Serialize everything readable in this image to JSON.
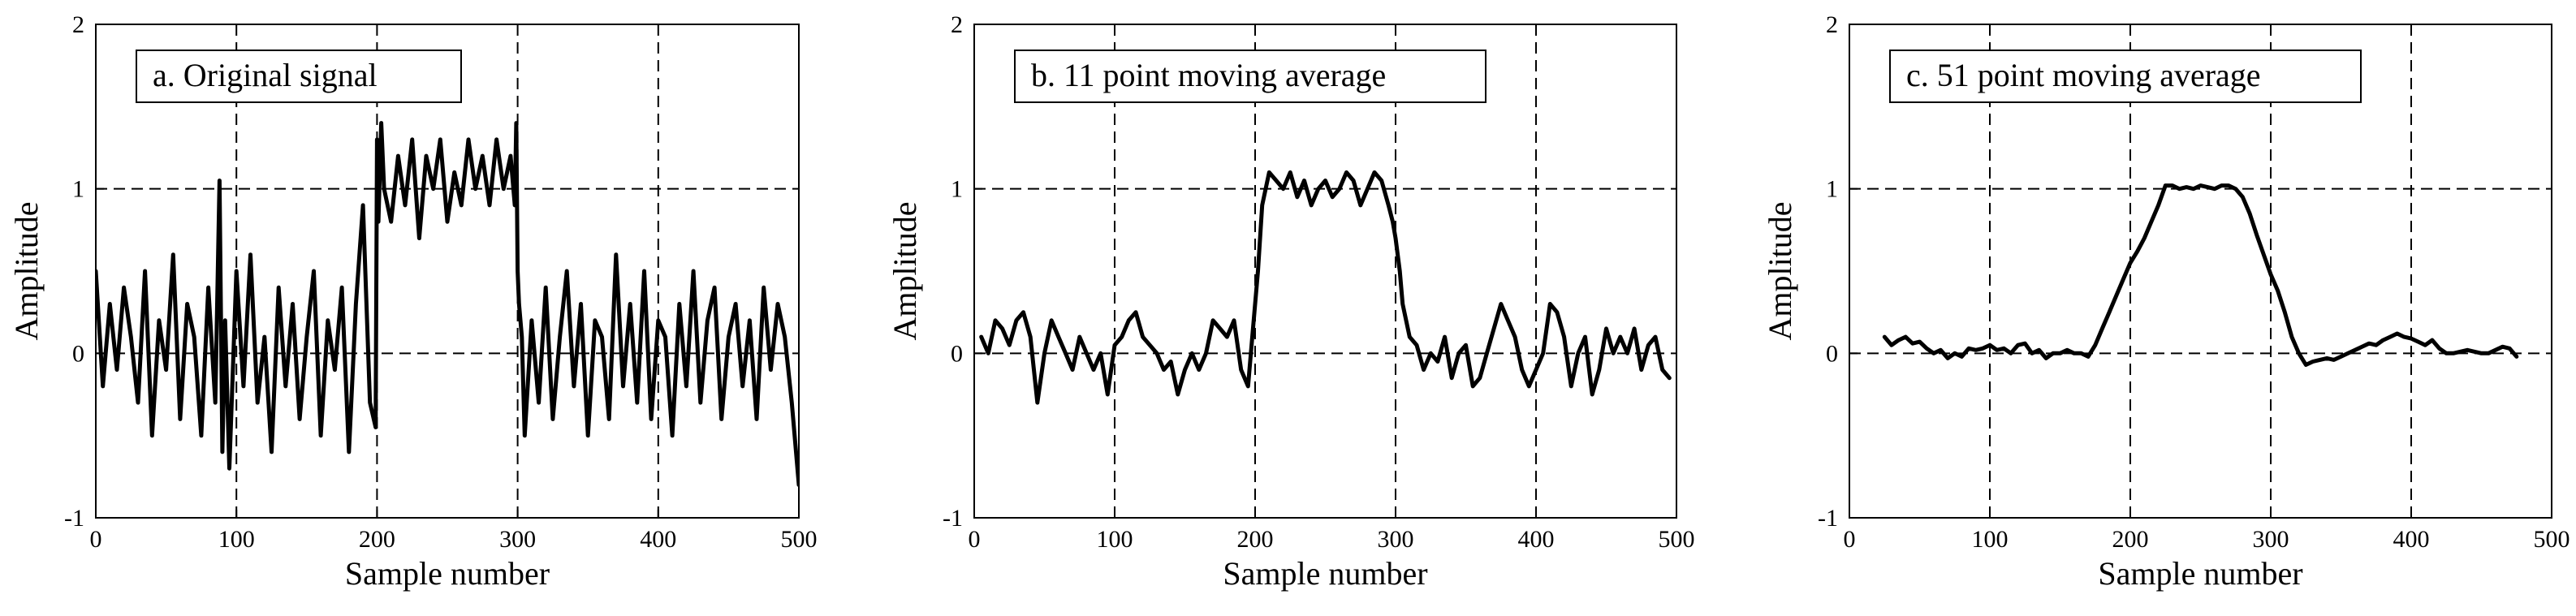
{
  "chart_data": [
    {
      "type": "line",
      "legend": "a.  Original signal",
      "xlabel": "Sample number",
      "ylabel": "Amplitude",
      "xlim": [
        0,
        500
      ],
      "ylim": [
        -1,
        2
      ],
      "x_ticks": [
        "0",
        "100",
        "200",
        "300",
        "400",
        "500"
      ],
      "y_ticks": [
        "-1",
        "0",
        "1",
        "2"
      ],
      "grid": true,
      "legend_position": "top-left",
      "series": [
        {
          "x": [
            0,
            5,
            10,
            15,
            20,
            25,
            30,
            35,
            40,
            45,
            50,
            55,
            60,
            65,
            70,
            75,
            80,
            85,
            88,
            90,
            92,
            95,
            100,
            105,
            110,
            115,
            120,
            125,
            130,
            135,
            140,
            145,
            150,
            155,
            160,
            165,
            170,
            175,
            180,
            185,
            190,
            195,
            199,
            200,
            201,
            203,
            205,
            210,
            215,
            220,
            225,
            230,
            235,
            240,
            245,
            250,
            255,
            260,
            265,
            270,
            275,
            280,
            285,
            290,
            295,
            298,
            299,
            300,
            301,
            303,
            305,
            310,
            315,
            320,
            325,
            330,
            335,
            340,
            345,
            350,
            355,
            360,
            365,
            370,
            375,
            380,
            385,
            390,
            395,
            400,
            405,
            410,
            415,
            420,
            425,
            430,
            435,
            440,
            445,
            450,
            455,
            460,
            465,
            470,
            475,
            480,
            485,
            490,
            495,
            500
          ],
          "y": [
            0.5,
            -0.2,
            0.3,
            -0.1,
            0.4,
            0.1,
            -0.3,
            0.5,
            -0.5,
            0.2,
            -0.1,
            0.6,
            -0.4,
            0.3,
            0.1,
            -0.5,
            0.4,
            -0.3,
            1.05,
            -0.6,
            0.2,
            -0.7,
            0.5,
            -0.2,
            0.6,
            -0.3,
            0.1,
            -0.6,
            0.4,
            -0.2,
            0.3,
            -0.4,
            0.1,
            0.5,
            -0.5,
            0.2,
            -0.1,
            0.4,
            -0.6,
            0.3,
            0.9,
            -0.3,
            -0.45,
            1.3,
            0.8,
            1.4,
            1.0,
            0.8,
            1.2,
            0.9,
            1.3,
            0.7,
            1.2,
            1.0,
            1.3,
            0.8,
            1.1,
            0.9,
            1.3,
            1.0,
            1.2,
            0.9,
            1.3,
            1.0,
            1.2,
            0.9,
            1.4,
            0.5,
            0.3,
            0.1,
            -0.5,
            0.2,
            -0.3,
            0.4,
            -0.4,
            0.1,
            0.5,
            -0.2,
            0.3,
            -0.5,
            0.2,
            0.1,
            -0.4,
            0.6,
            -0.2,
            0.3,
            -0.3,
            0.5,
            -0.4,
            0.2,
            0.1,
            -0.5,
            0.3,
            -0.2,
            0.5,
            -0.3,
            0.2,
            0.4,
            -0.4,
            0.1,
            0.3,
            -0.2,
            0.2,
            -0.4,
            0.4,
            -0.1,
            0.3,
            0.1,
            -0.3,
            -0.8
          ]
        }
      ]
    },
    {
      "type": "line",
      "legend": "b.  11 point moving average",
      "xlabel": "Sample number",
      "ylabel": "Amplitude",
      "xlim": [
        0,
        500
      ],
      "ylim": [
        -1,
        2
      ],
      "x_ticks": [
        "0",
        "100",
        "200",
        "300",
        "400",
        "500"
      ],
      "y_ticks": [
        "-1",
        "0",
        "1",
        "2"
      ],
      "grid": true,
      "legend_position": "top-left",
      "series": [
        {
          "x": [
            5,
            10,
            15,
            20,
            25,
            30,
            35,
            40,
            45,
            50,
            55,
            60,
            65,
            70,
            75,
            80,
            85,
            90,
            95,
            100,
            105,
            110,
            115,
            120,
            125,
            130,
            135,
            140,
            145,
            150,
            155,
            160,
            165,
            170,
            175,
            180,
            185,
            190,
            195,
            198,
            202,
            205,
            210,
            215,
            220,
            225,
            230,
            235,
            240,
            245,
            250,
            255,
            260,
            265,
            270,
            275,
            280,
            285,
            290,
            295,
            298,
            300,
            303,
            305,
            310,
            315,
            320,
            325,
            330,
            335,
            340,
            345,
            350,
            355,
            360,
            365,
            370,
            375,
            380,
            385,
            390,
            395,
            400,
            405,
            410,
            415,
            420,
            425,
            430,
            435,
            440,
            445,
            450,
            455,
            460,
            465,
            470,
            475,
            480,
            485,
            490,
            495
          ],
          "y": [
            0.1,
            0.0,
            0.2,
            0.15,
            0.05,
            0.2,
            0.25,
            0.1,
            -0.3,
            0.0,
            0.2,
            0.1,
            0.0,
            -0.1,
            0.1,
            0.0,
            -0.1,
            0.0,
            -0.25,
            0.05,
            0.1,
            0.2,
            0.25,
            0.1,
            0.05,
            0.0,
            -0.1,
            -0.05,
            -0.25,
            -0.1,
            0.0,
            -0.1,
            0.0,
            0.2,
            0.15,
            0.1,
            0.2,
            -0.1,
            -0.2,
            0.1,
            0.5,
            0.9,
            1.1,
            1.05,
            1.0,
            1.1,
            0.95,
            1.05,
            0.9,
            1.0,
            1.05,
            0.95,
            1.0,
            1.1,
            1.05,
            0.9,
            1.0,
            1.1,
            1.05,
            0.9,
            0.8,
            0.7,
            0.5,
            0.3,
            0.1,
            0.05,
            -0.1,
            0.0,
            -0.05,
            0.1,
            -0.15,
            0.0,
            0.05,
            -0.2,
            -0.15,
            0.0,
            0.15,
            0.3,
            0.2,
            0.1,
            -0.1,
            -0.2,
            -0.1,
            0.0,
            0.3,
            0.25,
            0.1,
            -0.2,
            0.0,
            0.1,
            -0.25,
            -0.1,
            0.15,
            0.0,
            0.1,
            0.0,
            0.15,
            -0.1,
            0.05,
            0.1,
            -0.1,
            -0.15
          ]
        }
      ]
    },
    {
      "type": "line",
      "legend": "c.  51 point moving average",
      "xlabel": "Sample number",
      "ylabel": "Amplitude",
      "xlim": [
        0,
        500
      ],
      "ylim": [
        -1,
        2
      ],
      "x_ticks": [
        "0",
        "100",
        "200",
        "300",
        "400",
        "500"
      ],
      "y_ticks": [
        "-1",
        "0",
        "1",
        "2"
      ],
      "grid": true,
      "legend_position": "top-left",
      "series": [
        {
          "x": [
            25,
            30,
            35,
            40,
            45,
            50,
            55,
            60,
            65,
            70,
            75,
            80,
            85,
            90,
            95,
            100,
            105,
            110,
            115,
            120,
            125,
            130,
            135,
            140,
            145,
            150,
            155,
            160,
            165,
            170,
            175,
            180,
            185,
            190,
            195,
            200,
            205,
            210,
            215,
            220,
            225,
            230,
            235,
            240,
            245,
            250,
            255,
            260,
            265,
            270,
            275,
            280,
            285,
            290,
            295,
            300,
            305,
            310,
            315,
            320,
            325,
            330,
            335,
            340,
            345,
            350,
            355,
            360,
            365,
            370,
            375,
            380,
            385,
            390,
            395,
            400,
            405,
            410,
            415,
            420,
            425,
            430,
            435,
            440,
            445,
            450,
            455,
            460,
            465,
            470,
            475
          ],
          "y": [
            0.1,
            0.05,
            0.08,
            0.1,
            0.06,
            0.07,
            0.03,
            0.0,
            0.02,
            -0.03,
            0.0,
            -0.02,
            0.03,
            0.02,
            0.03,
            0.05,
            0.02,
            0.03,
            0.0,
            0.05,
            0.06,
            0.0,
            0.02,
            -0.03,
            0.0,
            0.0,
            0.02,
            0.0,
            0.0,
            -0.02,
            0.05,
            0.15,
            0.25,
            0.35,
            0.45,
            0.55,
            0.62,
            0.7,
            0.8,
            0.9,
            1.02,
            1.02,
            1.0,
            1.01,
            1.0,
            1.02,
            1.01,
            1.0,
            1.02,
            1.02,
            1.0,
            0.95,
            0.85,
            0.72,
            0.6,
            0.48,
            0.38,
            0.25,
            0.1,
            0.0,
            -0.07,
            -0.05,
            -0.04,
            -0.03,
            -0.04,
            -0.02,
            0.0,
            0.02,
            0.04,
            0.06,
            0.05,
            0.08,
            0.1,
            0.12,
            0.1,
            0.09,
            0.07,
            0.05,
            0.08,
            0.03,
            0.0,
            0.0,
            0.01,
            0.02,
            0.01,
            0.0,
            0.0,
            0.02,
            0.04,
            0.03,
            -0.02
          ]
        }
      ]
    }
  ]
}
